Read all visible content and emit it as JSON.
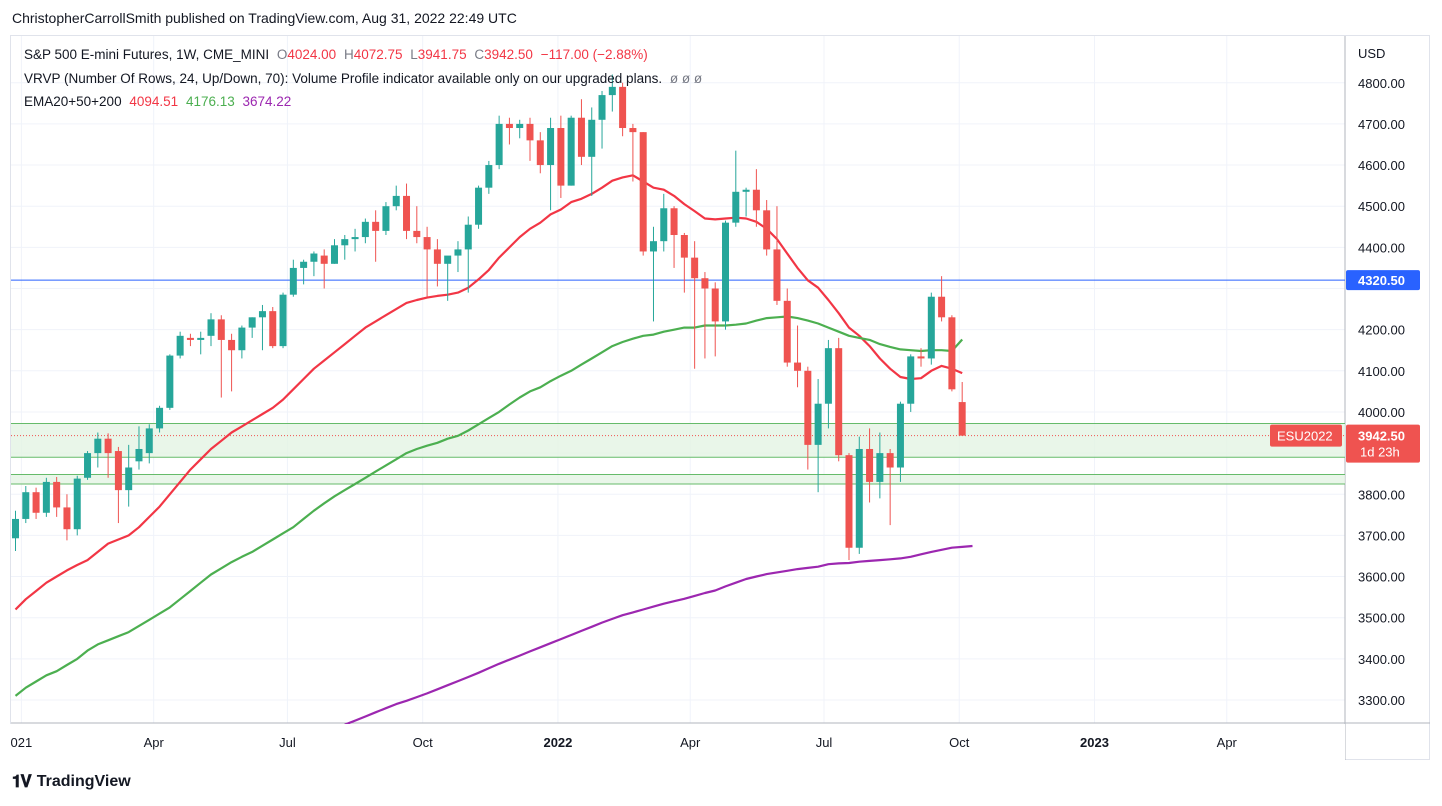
{
  "publisher_line": "ChristopherCarrollSmith published on TradingView.com, Aug 31, 2022 22:49 UTC",
  "legend": {
    "symbol": "S&P 500 E-mini Futures, 1W, CME_MINI",
    "open_label": "O",
    "open": "4024.00",
    "high_label": "H",
    "high": "4072.75",
    "low_label": "L",
    "low": "3941.75",
    "close_label": "C",
    "close": "3942.50",
    "change": "−117.00 (−2.88%)",
    "vrvp": "VRVP (Number Of Rows, 24, Up/Down, 70): Volume Profile indicator available only on our upgraded plans.",
    "vrvp_icons": "ø  ø  ø",
    "ema_label": "EMA20+50+200",
    "ema20": "4094.51",
    "ema50": "4176.13",
    "ema200": "3674.22"
  },
  "footer_brand": "TradingView",
  "colors": {
    "up": "#26a69a",
    "down": "#ef5350",
    "ema20": "#f23645",
    "ema50": "#4caf50",
    "ema200": "#9c27b0",
    "hline": "#2962ff",
    "zone_fill": "#e3f4e3",
    "zone_line": "#66bb6a"
  },
  "chart_data": {
    "type": "candlestick",
    "currency_label": "USD",
    "ylim": [
      3240,
      4870
    ],
    "y_ticks": [
      3300,
      3400,
      3500,
      3600,
      3700,
      3800,
      3900,
      4000,
      4100,
      4200,
      4300,
      4400,
      4500,
      4600,
      4700,
      4800
    ],
    "y_tick_labels": [
      "3300.00",
      "3400.00",
      "3500.00",
      "3600.00",
      "3700.00",
      "3800.00",
      "",
      "4000.00",
      "4100.00",
      "4200.00",
      "",
      "4400.00",
      "4500.00",
      "4600.00",
      "4700.00",
      "4800.00"
    ],
    "x_axis_labels": [
      {
        "text": "021",
        "date": "2021-01-01",
        "bold": false
      },
      {
        "text": "Apr",
        "date": "2021-04-01",
        "bold": false
      },
      {
        "text": "Jul",
        "date": "2021-07-01",
        "bold": false
      },
      {
        "text": "Oct",
        "date": "2021-10-01",
        "bold": false
      },
      {
        "text": "2022",
        "date": "2022-01-01",
        "bold": true
      },
      {
        "text": "Apr",
        "date": "2022-04-01",
        "bold": false
      },
      {
        "text": "Jul",
        "date": "2022-07-01",
        "bold": false
      },
      {
        "text": "Oct",
        "date": "2022-10-01",
        "bold": false
      },
      {
        "text": "2023",
        "date": "2023-01-01",
        "bold": true
      },
      {
        "text": "Apr",
        "date": "2023-04-01",
        "bold": false
      }
    ],
    "first_bar_date": "2020-12-28",
    "candles": [
      [
        3693,
        3760,
        3662,
        3740
      ],
      [
        3740,
        3820,
        3730,
        3805
      ],
      [
        3805,
        3816,
        3740,
        3755
      ],
      [
        3755,
        3840,
        3745,
        3830
      ],
      [
        3830,
        3842,
        3745,
        3768
      ],
      [
        3768,
        3800,
        3688,
        3715
      ],
      [
        3715,
        3845,
        3700,
        3838
      ],
      [
        3840,
        3905,
        3835,
        3900
      ],
      [
        3900,
        3950,
        3865,
        3935
      ],
      [
        3935,
        3948,
        3840,
        3900
      ],
      [
        3905,
        3915,
        3730,
        3810
      ],
      [
        3810,
        3920,
        3770,
        3865
      ],
      [
        3880,
        3965,
        3860,
        3910
      ],
      [
        3900,
        3970,
        3875,
        3960
      ],
      [
        3960,
        4015,
        3950,
        4010
      ],
      [
        4010,
        4140,
        4005,
        4137
      ],
      [
        4137,
        4195,
        4130,
        4185
      ],
      [
        4180,
        4190,
        4160,
        4175
      ],
      [
        4175,
        4195,
        4140,
        4180
      ],
      [
        4185,
        4240,
        4160,
        4225
      ],
      [
        4225,
        4235,
        4035,
        4175
      ],
      [
        4175,
        4190,
        4050,
        4150
      ],
      [
        4150,
        4210,
        4130,
        4205
      ],
      [
        4205,
        4230,
        4180,
        4230
      ],
      [
        4230,
        4260,
        4150,
        4245
      ],
      [
        4245,
        4255,
        4155,
        4160
      ],
      [
        4160,
        4290,
        4155,
        4285
      ],
      [
        4285,
        4370,
        4280,
        4350
      ],
      [
        4350,
        4370,
        4310,
        4365
      ],
      [
        4365,
        4390,
        4330,
        4385
      ],
      [
        4380,
        4395,
        4300,
        4360
      ],
      [
        4360,
        4420,
        4360,
        4405
      ],
      [
        4405,
        4430,
        4370,
        4420
      ],
      [
        4420,
        4445,
        4390,
        4425
      ],
      [
        4425,
        4470,
        4410,
        4462
      ],
      [
        4462,
        4490,
        4365,
        4440
      ],
      [
        4440,
        4510,
        4430,
        4500
      ],
      [
        4500,
        4550,
        4490,
        4525
      ],
      [
        4525,
        4555,
        4420,
        4440
      ],
      [
        4440,
        4500,
        4410,
        4425
      ],
      [
        4425,
        4450,
        4280,
        4395
      ],
      [
        4395,
        4420,
        4305,
        4360
      ],
      [
        4360,
        4370,
        4270,
        4380
      ],
      [
        4380,
        4415,
        4340,
        4395
      ],
      [
        4395,
        4475,
        4290,
        4455
      ],
      [
        4455,
        4550,
        4445,
        4545
      ],
      [
        4545,
        4610,
        4530,
        4600
      ],
      [
        4600,
        4720,
        4590,
        4700
      ],
      [
        4700,
        4715,
        4650,
        4690
      ],
      [
        4690,
        4710,
        4665,
        4700
      ],
      [
        4700,
        4715,
        4610,
        4660
      ],
      [
        4660,
        4680,
        4580,
        4600
      ],
      [
        4600,
        4715,
        4490,
        4690
      ],
      [
        4690,
        4720,
        4520,
        4550
      ],
      [
        4550,
        4720,
        4550,
        4715
      ],
      [
        4715,
        4760,
        4600,
        4620
      ],
      [
        4620,
        4740,
        4525,
        4710
      ],
      [
        4710,
        4780,
        4640,
        4770
      ],
      [
        4770,
        4820,
        4730,
        4790
      ],
      [
        4790,
        4800,
        4670,
        4690
      ],
      [
        4690,
        4700,
        4560,
        4680
      ],
      [
        4680,
        4680,
        4380,
        4390
      ],
      [
        4390,
        4450,
        4220,
        4415
      ],
      [
        4415,
        4530,
        4390,
        4495
      ],
      [
        4495,
        4500,
        4350,
        4430
      ],
      [
        4430,
        4435,
        4290,
        4375
      ],
      [
        4375,
        4415,
        4105,
        4325
      ],
      [
        4325,
        4340,
        4130,
        4300
      ],
      [
        4300,
        4315,
        4135,
        4220
      ],
      [
        4220,
        4465,
        4200,
        4460
      ],
      [
        4460,
        4635,
        4450,
        4535
      ],
      [
        4535,
        4545,
        4475,
        4540
      ],
      [
        4540,
        4590,
        4450,
        4490
      ],
      [
        4490,
        4515,
        4380,
        4395
      ],
      [
        4395,
        4500,
        4260,
        4270
      ],
      [
        4270,
        4300,
        4110,
        4120
      ],
      [
        4120,
        4210,
        4060,
        4100
      ],
      [
        4100,
        4110,
        3860,
        3920
      ],
      [
        3920,
        4080,
        3805,
        4020
      ],
      [
        4020,
        4175,
        3960,
        4155
      ],
      [
        4155,
        4180,
        3880,
        3895
      ],
      [
        3895,
        3900,
        3640,
        3670
      ],
      [
        3670,
        3940,
        3655,
        3910
      ],
      [
        3910,
        3960,
        3780,
        3830
      ],
      [
        3830,
        3950,
        3790,
        3900
      ],
      [
        3900,
        3910,
        3725,
        3865
      ],
      [
        3865,
        4025,
        3830,
        4020
      ],
      [
        4020,
        4140,
        4000,
        4135
      ],
      [
        4135,
        4155,
        4110,
        4130
      ],
      [
        4130,
        4290,
        4115,
        4280
      ],
      [
        4280,
        4330,
        4220,
        4230
      ],
      [
        4230,
        4235,
        4050,
        4055
      ],
      [
        4024,
        4072.75,
        3941.75,
        3942.5
      ]
    ],
    "ema20": [
      3520,
      3545,
      3565,
      3585,
      3600,
      3615,
      3628,
      3640,
      3660,
      3680,
      3690,
      3700,
      3720,
      3745,
      3770,
      3800,
      3830,
      3860,
      3885,
      3910,
      3930,
      3950,
      3965,
      3980,
      3995,
      4010,
      4030,
      4055,
      4080,
      4105,
      4125,
      4145,
      4165,
      4185,
      4205,
      4220,
      4235,
      4250,
      4265,
      4272,
      4278,
      4282,
      4285,
      4290,
      4302,
      4322,
      4345,
      4375,
      4400,
      4425,
      4445,
      4460,
      4480,
      4492,
      4510,
      4518,
      4530,
      4545,
      4562,
      4570,
      4575,
      4560,
      4545,
      4540,
      4525,
      4505,
      4488,
      4470,
      4468,
      4470,
      4472,
      4470,
      4462,
      4445,
      4420,
      4385,
      4350,
      4320,
      4302,
      4272,
      4240,
      4205,
      4185,
      4160,
      4130,
      4105,
      4085,
      4080,
      4082,
      4100,
      4112,
      4105,
      4094.51
    ],
    "ema50": [
      3310,
      3330,
      3345,
      3360,
      3370,
      3385,
      3400,
      3420,
      3435,
      3445,
      3455,
      3465,
      3480,
      3495,
      3510,
      3525,
      3545,
      3565,
      3585,
      3605,
      3620,
      3635,
      3648,
      3660,
      3675,
      3690,
      3705,
      3720,
      3740,
      3760,
      3778,
      3795,
      3810,
      3825,
      3840,
      3855,
      3870,
      3885,
      3900,
      3910,
      3918,
      3925,
      3935,
      3942,
      3955,
      3970,
      3985,
      4000,
      4018,
      4035,
      4050,
      4060,
      4075,
      4088,
      4100,
      4115,
      4130,
      4145,
      4160,
      4170,
      4178,
      4185,
      4188,
      4195,
      4200,
      4205,
      4205,
      4210,
      4210,
      4210,
      4212,
      4215,
      4222,
      4228,
      4230,
      4232,
      4228,
      4222,
      4215,
      4205,
      4195,
      4185,
      4180,
      4175,
      4165,
      4158,
      4152,
      4150,
      4148,
      4150,
      4150,
      4148,
      4176.13
    ],
    "ema200_x_start": 32,
    "ema200": [
      3240,
      3250,
      3260,
      3270,
      3280,
      3290,
      3298,
      3307,
      3316,
      3326,
      3336,
      3346,
      3356,
      3366,
      3377,
      3388,
      3398,
      3408,
      3418,
      3428,
      3438,
      3448,
      3458,
      3468,
      3478,
      3488,
      3497,
      3506,
      3513,
      3520,
      3527,
      3534,
      3540,
      3546,
      3553,
      3560,
      3566,
      3576,
      3585,
      3594,
      3600,
      3606,
      3610,
      3614,
      3618,
      3621,
      3624,
      3630,
      3632,
      3633,
      3636,
      3638,
      3640,
      3642,
      3644,
      3648,
      3654,
      3660,
      3665,
      3670,
      3672,
      3674.22
    ],
    "horizontal_line": {
      "value": 4320.5,
      "label": "4320.50"
    },
    "zones": [
      {
        "from": 3890,
        "to": 3972
      },
      {
        "from": 3825,
        "to": 3848
      }
    ],
    "last_price": {
      "symbol": "ESU2022",
      "value": "3942.50",
      "countdown": "1d 23h"
    }
  }
}
